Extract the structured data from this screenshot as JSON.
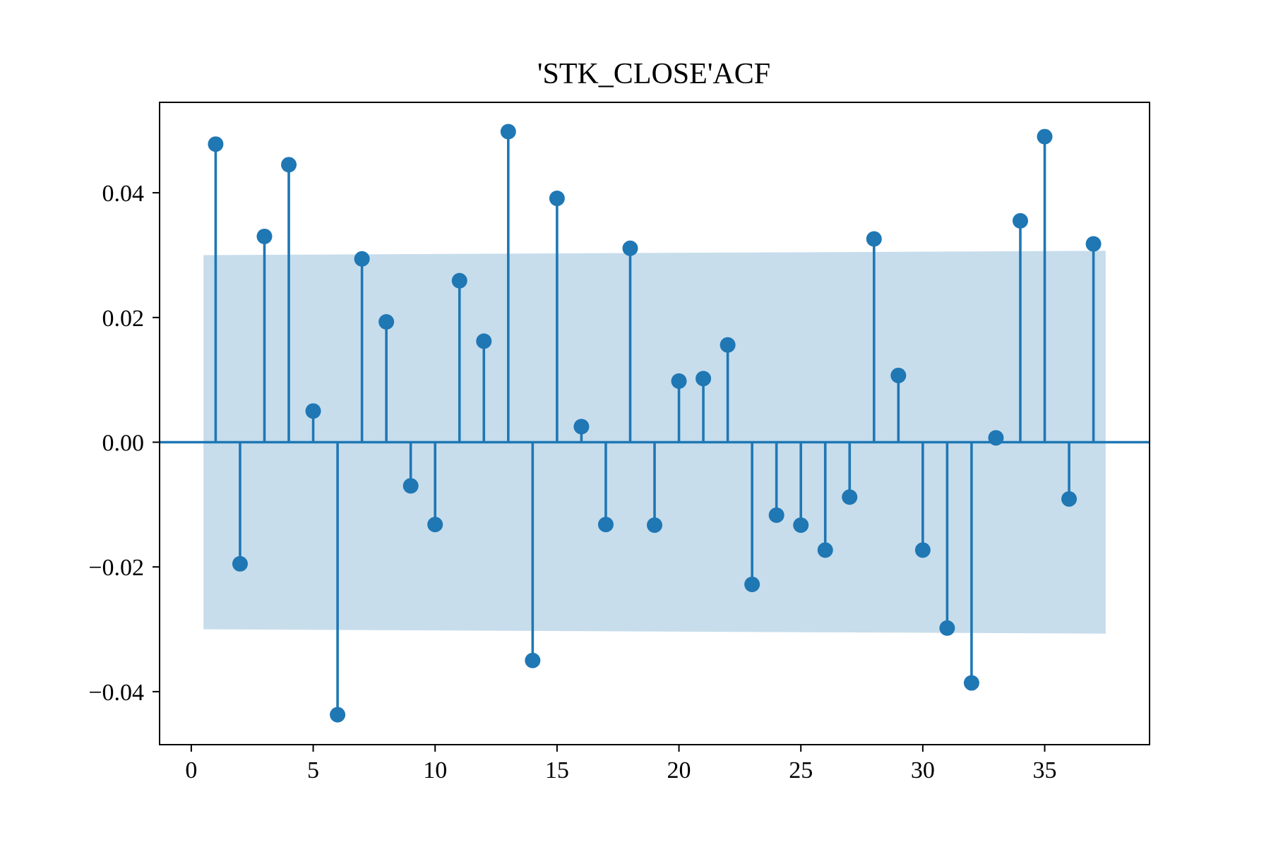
{
  "chart_data": {
    "type": "stem",
    "title": "'STK_CLOSE'ACF",
    "xlabel": "",
    "ylabel": "",
    "xlim": [
      -1.3,
      39.3
    ],
    "ylim": [
      -0.0485,
      0.0545
    ],
    "x_ticks": [
      0,
      5,
      10,
      15,
      20,
      25,
      30,
      35
    ],
    "x_tick_labels": [
      "0",
      "5",
      "10",
      "15",
      "20",
      "25",
      "30",
      "35"
    ],
    "y_ticks": [
      -0.04,
      -0.02,
      0.0,
      0.02,
      0.04
    ],
    "y_tick_labels": [
      "−0.04",
      "−0.02",
      "0.00",
      "0.02",
      "0.04"
    ],
    "grid": false,
    "colors": {
      "series": "#1f77b4",
      "band": "#1f77b4",
      "band_opacity": 0.25
    },
    "series": [
      {
        "x": [
          1,
          2,
          3,
          4,
          5,
          6,
          7,
          8,
          9,
          10,
          11,
          12,
          13,
          14,
          15,
          16,
          17,
          18,
          19,
          20,
          21,
          22,
          23,
          24,
          25,
          26,
          27,
          28,
          29,
          30,
          31,
          32,
          33,
          34,
          35,
          36,
          37
        ],
        "values": [
          0.0478,
          -0.0195,
          0.033,
          0.0445,
          0.005,
          -0.0437,
          0.0294,
          0.0193,
          -0.007,
          -0.0132,
          0.0259,
          0.0162,
          0.0498,
          -0.035,
          0.0391,
          0.0025,
          -0.0132,
          0.0311,
          -0.0133,
          0.0098,
          0.0102,
          0.0156,
          -0.0228,
          -0.0117,
          -0.0133,
          -0.0173,
          -0.0088,
          0.0326,
          0.0107,
          -0.0173,
          -0.0298,
          -0.0386,
          0.0007,
          0.0355,
          0.049,
          -0.0091,
          0.0318
        ]
      }
    ],
    "confidence_band": {
      "x": [
        0.5,
        37.5
      ],
      "upper": [
        0.03,
        0.0307
      ],
      "lower": [
        -0.03,
        -0.0307
      ]
    }
  }
}
